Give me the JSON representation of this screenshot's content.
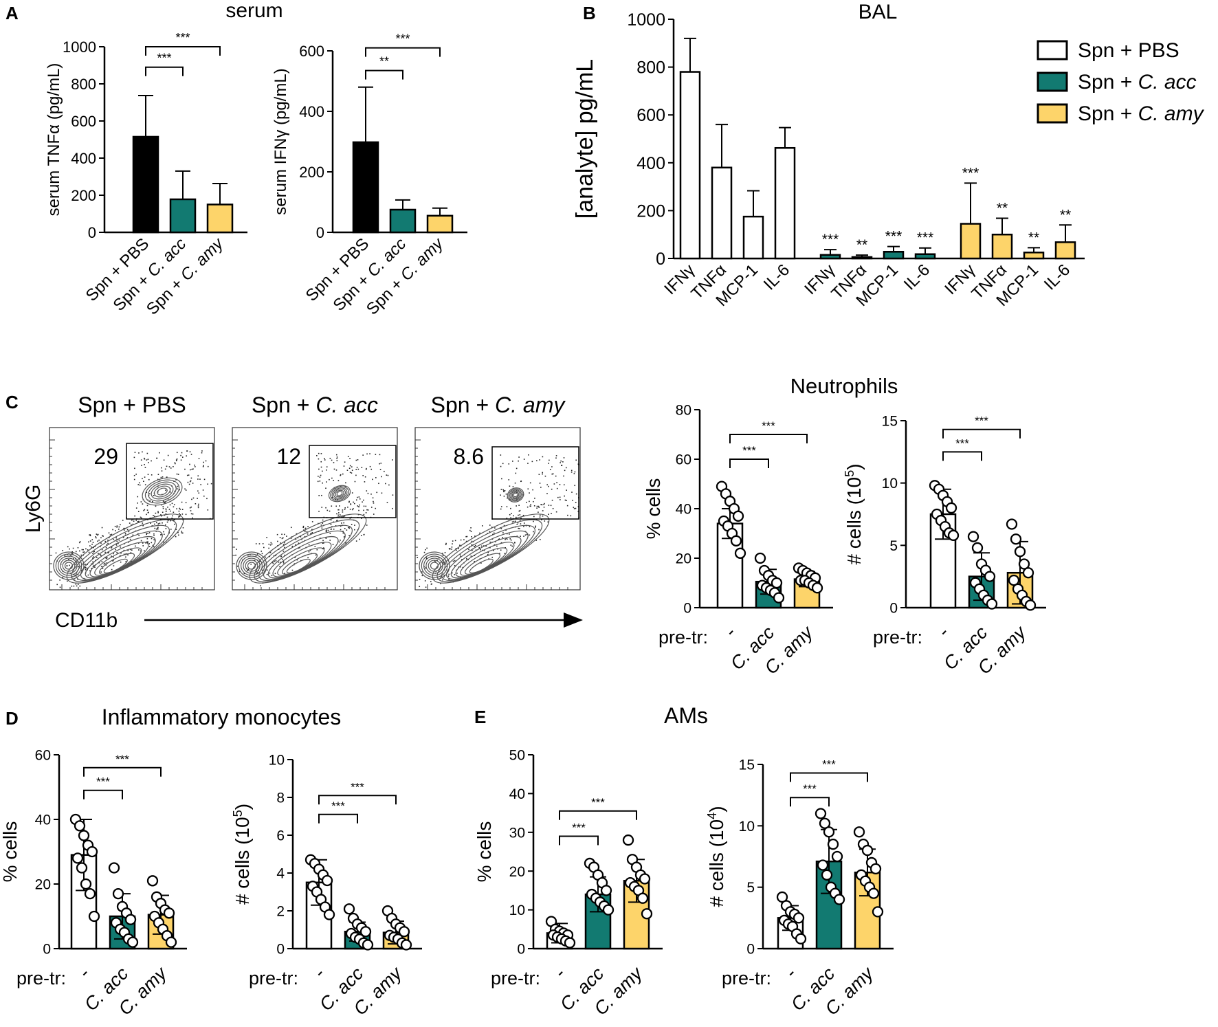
{
  "colors": {
    "pbs": "#ffffff",
    "acc": "#127a71",
    "amy": "#fdd46a",
    "black": "#000000"
  },
  "chart_data": [
    {
      "id": "A1",
      "panel_letter": "A",
      "type": "bar",
      "panel_title": "serum",
      "ylabel": "serum TNFα (pg/mL)",
      "ylim": [
        0,
        1000
      ],
      "yticks": [
        0,
        200,
        400,
        600,
        800,
        1000
      ],
      "categories": [
        "Spn + PBS",
        "Spn + C. acc",
        "Spn + C. amy"
      ],
      "cat_prefix": [
        "Spn + PBS",
        "Spn + ",
        "Spn + "
      ],
      "cat_italic": [
        "",
        "C. acc",
        "C. amy"
      ],
      "values": [
        515,
        178,
        150
      ],
      "errors": [
        222,
        152,
        113
      ],
      "fills": [
        "black",
        "acc",
        "amy"
      ],
      "sig": [
        {
          "from": 0,
          "to": 1,
          "label": "***",
          "y": 890
        },
        {
          "from": 0,
          "to": 2,
          "label": "***",
          "y": 1000
        }
      ]
    },
    {
      "id": "A2",
      "type": "bar",
      "ylabel": "serum IFNγ (pg/mL)",
      "ylim": [
        0,
        600
      ],
      "yticks": [
        0,
        200,
        400,
        600
      ],
      "categories": [
        "Spn + PBS",
        "Spn + C. acc",
        "Spn + C. amy"
      ],
      "cat_prefix": [
        "Spn + PBS",
        "Spn + ",
        "Spn + "
      ],
      "cat_italic": [
        "",
        "C. acc",
        "C. amy"
      ],
      "values": [
        298,
        75,
        55
      ],
      "errors": [
        182,
        32,
        25
      ],
      "fills": [
        "black",
        "acc",
        "amy"
      ],
      "sig": [
        {
          "from": 0,
          "to": 1,
          "label": "**",
          "y": 535
        },
        {
          "from": 0,
          "to": 2,
          "label": "***",
          "y": 610
        }
      ]
    },
    {
      "id": "B",
      "panel_letter": "B",
      "type": "bar",
      "panel_title": "BAL",
      "ylabel": "[analyte] pg/mL",
      "ylim": [
        0,
        1000
      ],
      "yticks": [
        0,
        200,
        400,
        600,
        800,
        1000
      ],
      "categories": [
        "IFNγ",
        "TNFα",
        "MCP-1",
        "IL-6",
        "IFNγ",
        "TNFα",
        "MCP-1",
        "IL-6",
        "IFNγ",
        "TNFα",
        "MCP-1",
        "IL-6"
      ],
      "values": [
        780,
        380,
        175,
        462,
        15,
        6,
        28,
        18,
        145,
        100,
        25,
        68
      ],
      "errors": [
        140,
        180,
        108,
        85,
        22,
        8,
        22,
        26,
        170,
        68,
        20,
        72
      ],
      "fills": [
        "pbs",
        "pbs",
        "pbs",
        "pbs",
        "acc",
        "acc",
        "acc",
        "acc",
        "amy",
        "amy",
        "amy",
        "amy"
      ],
      "stars": [
        "",
        "",
        "",
        "",
        "***",
        "**",
        "***",
        "***",
        "***",
        "**",
        "**",
        "**"
      ],
      "legend": [
        {
          "label": "Spn + PBS",
          "prefix": "Spn + PBS",
          "italic": "",
          "fill": "pbs"
        },
        {
          "label": "Spn + C. acc",
          "prefix": "Spn + ",
          "italic": "C. acc",
          "fill": "acc"
        },
        {
          "label": "Spn + C. amy",
          "prefix": "Spn + ",
          "italic": "C. amy",
          "fill": "amy"
        }
      ],
      "legend_position": "top-right"
    },
    {
      "id": "C1",
      "panel_letter": "C",
      "type": "scatter",
      "panel_title": "Neutrophils",
      "ylabel": "% cells",
      "ylim": [
        0,
        80
      ],
      "yticks": [
        0,
        20,
        40,
        60,
        80
      ],
      "xlabel": "pre-tr:",
      "categories": [
        "-",
        "C. acc",
        "C. amy"
      ],
      "values": [
        34,
        10.5,
        11.5
      ],
      "errors": [
        6,
        5,
        3
      ],
      "fills": [
        "pbs",
        "acc",
        "amy"
      ],
      "points": [
        [
          49,
          46,
          43,
          40,
          37,
          35,
          33,
          30,
          27,
          22
        ],
        [
          20,
          15,
          13,
          11,
          10,
          9,
          8,
          7,
          6,
          4
        ],
        [
          16,
          15,
          14,
          13,
          12,
          11,
          11,
          10,
          9,
          8
        ]
      ],
      "sig": [
        {
          "from": 0,
          "to": 1,
          "label": "***",
          "y": 60
        },
        {
          "from": 0,
          "to": 2,
          "label": "***",
          "y": 70
        }
      ]
    },
    {
      "id": "C2",
      "type": "scatter",
      "ylabel": "# cells (10⁵)",
      "ylabel_base": "# cells (10",
      "ylabel_sup": "5",
      "ylim": [
        0,
        15
      ],
      "yticks": [
        0,
        5,
        10,
        15
      ],
      "xlabel": "pre-tr:",
      "categories": [
        "-",
        "C. acc",
        "C. amy"
      ],
      "values": [
        7.5,
        2.5,
        2.8
      ],
      "errors": [
        2,
        1.9,
        2.5
      ],
      "fills": [
        "pbs",
        "acc",
        "amy"
      ],
      "points": [
        [
          9.8,
          9.5,
          9,
          8.5,
          8,
          7.5,
          7,
          6.5,
          6,
          5.8
        ],
        [
          5.7,
          4.8,
          3.5,
          3,
          2.5,
          2,
          1.5,
          1,
          0.6,
          0.3
        ],
        [
          6.7,
          5.5,
          4.5,
          3.5,
          2.8,
          2.2,
          1.5,
          1,
          0.5,
          0.2
        ]
      ],
      "sig": [
        {
          "from": 0,
          "to": 1,
          "label": "***",
          "y": 12.5
        },
        {
          "from": 0,
          "to": 2,
          "label": "***",
          "y": 14.3
        }
      ]
    },
    {
      "id": "D1",
      "panel_letter": "D",
      "type": "scatter",
      "panel_title": "Inflammatory monocytes",
      "ylabel": "% cells",
      "ylim": [
        0,
        60
      ],
      "yticks": [
        0,
        20,
        40,
        60
      ],
      "xlabel": "pre-tr:",
      "categories": [
        "-",
        "C. acc",
        "C. amy"
      ],
      "values": [
        29,
        10,
        10.5
      ],
      "errors": [
        11,
        7,
        6
      ],
      "fills": [
        "pbs",
        "acc",
        "amy"
      ],
      "points": [
        [
          40,
          38,
          35,
          32,
          30,
          28,
          25,
          20,
          17,
          10
        ],
        [
          25,
          17,
          13,
          11,
          9,
          8,
          6,
          5,
          3,
          2
        ],
        [
          21,
          16,
          14,
          12,
          11,
          10,
          8,
          6,
          4,
          2
        ]
      ],
      "sig": [
        {
          "from": 0,
          "to": 1,
          "label": "***",
          "y": 49
        },
        {
          "from": 0,
          "to": 2,
          "label": "***",
          "y": 56
        }
      ]
    },
    {
      "id": "D2",
      "type": "scatter",
      "ylabel": "# cells (10⁵)",
      "ylabel_base": "# cells (10",
      "ylabel_sup": "5",
      "ylim": [
        0,
        10
      ],
      "yticks": [
        0,
        2,
        4,
        6,
        8,
        10
      ],
      "xlabel": "pre-tr:",
      "categories": [
        "-",
        "C. acc",
        "C. amy"
      ],
      "values": [
        3.5,
        0.9,
        0.85
      ],
      "errors": [
        1.2,
        0.5,
        0.6
      ],
      "fills": [
        "pbs",
        "acc",
        "amy"
      ],
      "points": [
        [
          4.7,
          4.5,
          4.2,
          3.9,
          3.6,
          3.3,
          3,
          2.6,
          2.2,
          1.8
        ],
        [
          2.1,
          1.6,
          1.3,
          1.1,
          0.9,
          0.8,
          0.6,
          0.5,
          0.3,
          0.2
        ],
        [
          2,
          1.6,
          1.3,
          1.1,
          0.9,
          0.7,
          0.6,
          0.5,
          0.3,
          0.2
        ]
      ],
      "sig": [
        {
          "from": 0,
          "to": 1,
          "label": "***",
          "y": 7.1
        },
        {
          "from": 0,
          "to": 2,
          "label": "***",
          "y": 8.1
        }
      ]
    },
    {
      "id": "E1",
      "panel_letter": "E",
      "type": "scatter",
      "panel_title": "AMs",
      "ylabel": "% cells",
      "ylim": [
        0,
        50
      ],
      "yticks": [
        0,
        10,
        20,
        30,
        40,
        50
      ],
      "xlabel": "pre-tr:",
      "categories": [
        "-",
        "C. acc",
        "C. amy"
      ],
      "values": [
        4,
        14,
        17.5
      ],
      "errors": [
        2.5,
        4.5,
        5.5
      ],
      "fills": [
        "pbs",
        "acc",
        "amy"
      ],
      "points": [
        [
          7,
          5,
          4.5,
          4,
          3.5,
          3.5,
          3,
          2.5,
          2,
          1.5
        ],
        [
          22,
          21,
          19,
          17,
          15,
          14,
          13,
          12,
          11,
          10
        ],
        [
          28,
          23,
          21,
          19,
          18,
          17,
          16,
          15,
          13,
          9
        ]
      ],
      "sig": [
        {
          "from": 0,
          "to": 1,
          "label": "***",
          "y": 29
        },
        {
          "from": 0,
          "to": 2,
          "label": "***",
          "y": 35.5
        }
      ]
    },
    {
      "id": "E2",
      "type": "scatter",
      "ylabel": "# cells (10⁴)",
      "ylabel_base": "# cells (10",
      "ylabel_sup": "4",
      "ylim": [
        0,
        15
      ],
      "yticks": [
        0,
        5,
        10,
        15
      ],
      "xlabel": "pre-tr:",
      "categories": [
        "-",
        "C. acc",
        "C. amy"
      ],
      "values": [
        2.5,
        7.1,
        6.2
      ],
      "errors": [
        1,
        2.6,
        1.9
      ],
      "fills": [
        "pbs",
        "acc",
        "amy"
      ],
      "points": [
        [
          4.2,
          3.5,
          3,
          2.8,
          2.5,
          2.3,
          2,
          1.8,
          1.2,
          0.8
        ],
        [
          11,
          10.2,
          9.5,
          8.5,
          7.5,
          6.8,
          6,
          5,
          4.5,
          4
        ],
        [
          9.5,
          8.5,
          8,
          7,
          6.5,
          6,
          5.5,
          5,
          4.5,
          3
        ]
      ],
      "sig": [
        {
          "from": 0,
          "to": 1,
          "label": "***",
          "y": 12.3
        },
        {
          "from": 0,
          "to": 2,
          "label": "***",
          "y": 14.3
        }
      ]
    },
    {
      "id": "C-flow",
      "type": "contour",
      "titles": [
        {
          "prefix": "Spn + PBS",
          "italic": ""
        },
        {
          "prefix": "Spn + ",
          "italic": "C. acc"
        },
        {
          "prefix": "Spn + ",
          "italic": "C. amy"
        }
      ],
      "gate_percent": [
        "29",
        "12",
        "8.6"
      ],
      "ylabel": "Ly6G",
      "xlabel": "CD11b"
    }
  ]
}
